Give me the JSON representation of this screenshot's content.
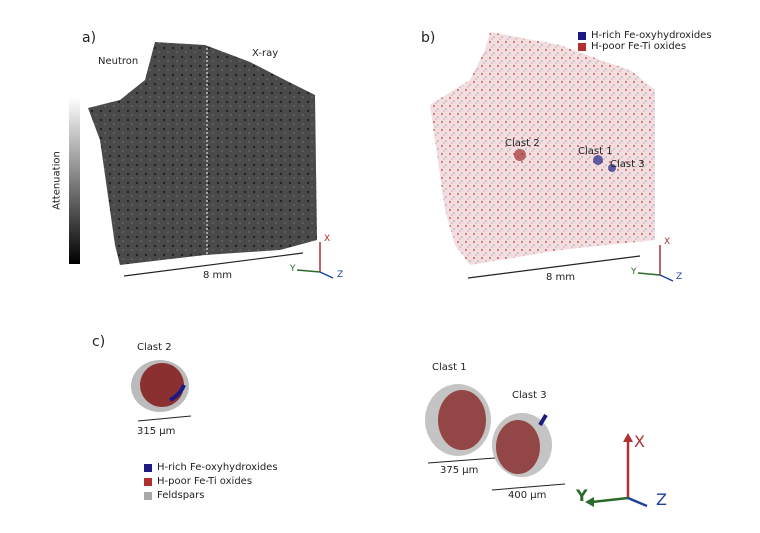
{
  "panel_a": {
    "label": "a)",
    "left_label": "Neutron",
    "right_label": "X-ray",
    "colorbar_label": "Attenuation",
    "scale_label": "8 mm",
    "axes": {
      "x": "X",
      "y": "Y",
      "z": "Z"
    }
  },
  "panel_b": {
    "label": "b)",
    "legend": [
      {
        "label": "H-rich Fe-oxyhydroxides",
        "color": "#1a1a80"
      },
      {
        "label": "H-poor Fe-Ti oxides",
        "color": "#b03030"
      }
    ],
    "clasts": [
      "Clast 2",
      "Clast 1",
      "Clast 3"
    ],
    "scale_label": "8 mm",
    "axes": {
      "x": "X",
      "y": "Y",
      "z": "Z"
    }
  },
  "panel_c": {
    "label": "c)",
    "clasts": [
      {
        "name": "Clast 2",
        "scale": "315 µm"
      },
      {
        "name": "Clast 1",
        "scale": "375 µm"
      },
      {
        "name": "Clast 3",
        "scale": "400 µm"
      }
    ],
    "legend": [
      {
        "label": "H-rich Fe-oxyhydroxides",
        "color": "#1a1a80"
      },
      {
        "label": "H-poor Fe-Ti oxides",
        "color": "#b03030"
      },
      {
        "label": "Feldspars",
        "color": "#aaaaaa"
      }
    ],
    "axes": {
      "x": "X",
      "y": "Y",
      "z": "Z"
    }
  },
  "colors": {
    "axis_x": "#b03030",
    "axis_y": "#2a6a2a",
    "axis_z": "#2040a0"
  }
}
